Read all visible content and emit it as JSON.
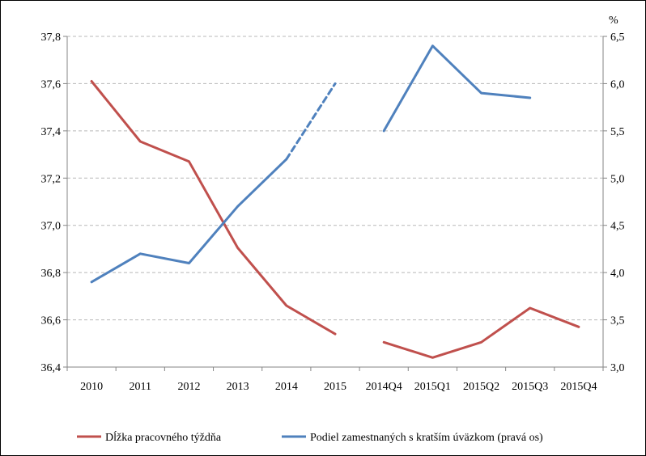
{
  "chart_data": {
    "type": "line",
    "categories": [
      "2010",
      "2011",
      "2012",
      "2013",
      "2014",
      "2015",
      "2014Q4",
      "2015Q1",
      "2015Q2",
      "2015Q3",
      "2015Q4"
    ],
    "left_axis": {
      "ylim": [
        36.4,
        37.8
      ],
      "ticks": [
        "36,4",
        "36,6",
        "36,8",
        "37,0",
        "37,2",
        "37,4",
        "37,6",
        "37,8"
      ]
    },
    "right_axis": {
      "label": "%",
      "ylim": [
        3.0,
        6.5
      ],
      "ticks": [
        "3,0",
        "3,5",
        "4,0",
        "4,5",
        "5,0",
        "5,5",
        "6,0",
        "6,5"
      ]
    },
    "series": [
      {
        "name": "Dĺžka pracovného týždňa",
        "axis": "left",
        "color": "#C0504D",
        "segments": [
          {
            "x": [
              "2010",
              "2011",
              "2012",
              "2013",
              "2014",
              "2015"
            ],
            "y": [
              37.61,
              37.355,
              37.27,
              36.905,
              36.66,
              36.54
            ]
          },
          {
            "x": [
              "2014Q4",
              "2015Q1",
              "2015Q2",
              "2015Q3",
              "2015Q4"
            ],
            "y": [
              36.505,
              36.44,
              36.505,
              36.65,
              36.57
            ]
          }
        ]
      },
      {
        "name": "Podiel zamestnaných s kratším úväzkom (pravá os)",
        "axis": "right",
        "color": "#4F81BD",
        "segments": [
          {
            "x": [
              "2010",
              "2011",
              "2012",
              "2013",
              "2014"
            ],
            "y": [
              3.9,
              4.2,
              4.1,
              4.7,
              5.2
            ]
          },
          {
            "x": [
              "2014",
              "2015"
            ],
            "y": [
              5.2,
              6.0
            ],
            "dashed": true
          },
          {
            "x": [
              "2014Q4",
              "2015Q1",
              "2015Q2",
              "2015Q3"
            ],
            "y": [
              5.5,
              6.4,
              5.9,
              5.85
            ]
          }
        ]
      }
    ],
    "grid": true,
    "legend_position": "bottom"
  }
}
